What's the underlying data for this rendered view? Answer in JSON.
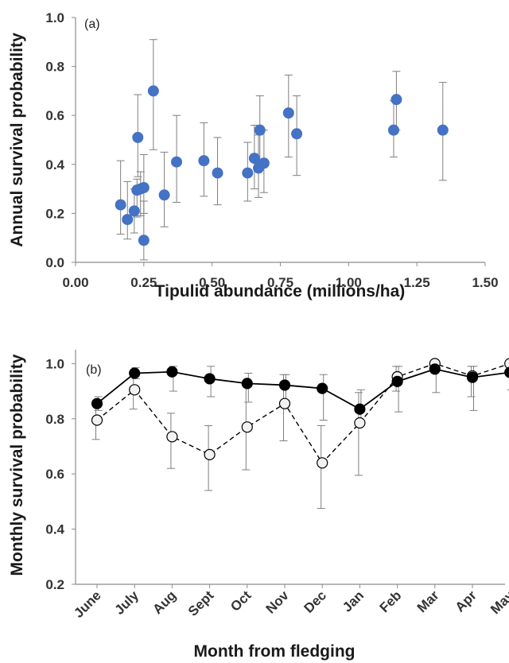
{
  "chart_data": [
    {
      "type": "scatter",
      "panel_label": "(a)",
      "xlabel": "Tipulid abundance (millions/ha)",
      "ylabel": "Annual survival probability",
      "xlim": [
        0,
        1.5
      ],
      "ylim": [
        0,
        1.0
      ],
      "xticks": [
        "0.00",
        "0.25",
        "0.50",
        "0.75",
        "1.00",
        "1.25",
        "1.50"
      ],
      "yticks": [
        "0.0",
        "0.2",
        "0.4",
        "0.6",
        "0.8",
        "1.0"
      ],
      "grid": false,
      "marker_color": "#4472c4",
      "points": [
        {
          "x": 0.165,
          "y": 0.235,
          "lo": 0.115,
          "hi": 0.415
        },
        {
          "x": 0.19,
          "y": 0.175,
          "lo": 0.095,
          "hi": 0.33
        },
        {
          "x": 0.215,
          "y": 0.21,
          "lo": 0.12,
          "hi": 0.3
        },
        {
          "x": 0.225,
          "y": 0.295,
          "lo": 0.185,
          "hi": 0.34
        },
        {
          "x": 0.228,
          "y": 0.51,
          "lo": 0.35,
          "hi": 0.685
        },
        {
          "x": 0.238,
          "y": 0.3,
          "lo": 0.19,
          "hi": 0.37
        },
        {
          "x": 0.25,
          "y": 0.305,
          "lo": 0.2,
          "hi": 0.44
        },
        {
          "x": 0.25,
          "y": 0.09,
          "lo": 0.01,
          "hi": 0.25
        },
        {
          "x": 0.285,
          "y": 0.7,
          "lo": 0.46,
          "hi": 0.91
        },
        {
          "x": 0.325,
          "y": 0.275,
          "lo": 0.145,
          "hi": 0.45
        },
        {
          "x": 0.37,
          "y": 0.41,
          "lo": 0.245,
          "hi": 0.6
        },
        {
          "x": 0.47,
          "y": 0.415,
          "lo": 0.27,
          "hi": 0.57
        },
        {
          "x": 0.52,
          "y": 0.365,
          "lo": 0.235,
          "hi": 0.51
        },
        {
          "x": 0.63,
          "y": 0.365,
          "lo": 0.25,
          "hi": 0.49
        },
        {
          "x": 0.655,
          "y": 0.425,
          "lo": 0.3,
          "hi": 0.56
        },
        {
          "x": 0.67,
          "y": 0.385,
          "lo": 0.265,
          "hi": 0.52
        },
        {
          "x": 0.675,
          "y": 0.54,
          "lo": 0.39,
          "hi": 0.68
        },
        {
          "x": 0.69,
          "y": 0.405,
          "lo": 0.285,
          "hi": 0.54
        },
        {
          "x": 0.78,
          "y": 0.61,
          "lo": 0.43,
          "hi": 0.765
        },
        {
          "x": 0.81,
          "y": 0.525,
          "lo": 0.355,
          "hi": 0.68
        },
        {
          "x": 1.165,
          "y": 0.54,
          "lo": 0.43,
          "hi": 0.66
        },
        {
          "x": 1.175,
          "y": 0.665,
          "lo": 0.54,
          "hi": 0.78
        },
        {
          "x": 1.345,
          "y": 0.54,
          "lo": 0.335,
          "hi": 0.735
        }
      ]
    },
    {
      "type": "line",
      "panel_label": "(b)",
      "xlabel": "Month from fledging",
      "ylabel": "Monthly survival probability",
      "ylim": [
        0.2,
        1.05
      ],
      "yticks": [
        "0.2",
        "0.4",
        "0.6",
        "0.8",
        "1.0"
      ],
      "grid": false,
      "categories": [
        "June",
        "July",
        "Aug",
        "Sept",
        "Oct",
        "Nov",
        "Dec",
        "Jan",
        "Feb",
        "Mar",
        "Apr",
        "May"
      ],
      "series": [
        {
          "style": "solid",
          "marker_fill": "#000000",
          "values": [
            0.855,
            0.965,
            0.97,
            0.945,
            0.928,
            0.922,
            0.91,
            0.835,
            0.935,
            0.98,
            0.95,
            0.968
          ],
          "lo": [
            0.83,
            0.945,
            0.9,
            0.88,
            0.86,
            0.85,
            0.795,
            0.79,
            0.825,
            0.895,
            0.83,
            0.905
          ],
          "hi": [
            0.88,
            0.985,
            0.99,
            0.99,
            0.965,
            0.96,
            0.96,
            0.905,
            0.99,
            1.0,
            0.99,
            0.99
          ]
        },
        {
          "style": "dashed",
          "marker_fill": "#f2f2f2",
          "values": [
            0.795,
            0.905,
            0.735,
            0.67,
            0.77,
            0.855,
            0.64,
            0.785,
            0.952,
            1.0,
            0.955,
            1.0
          ],
          "lo": [
            0.725,
            0.835,
            0.62,
            0.54,
            0.615,
            0.72,
            0.475,
            0.595,
            0.9,
            0.99,
            0.88,
            0.99
          ],
          "hi": [
            0.86,
            0.97,
            0.82,
            0.775,
            0.93,
            0.96,
            0.775,
            0.895,
            0.99,
            1.0,
            0.99,
            1.0
          ]
        }
      ]
    }
  ]
}
